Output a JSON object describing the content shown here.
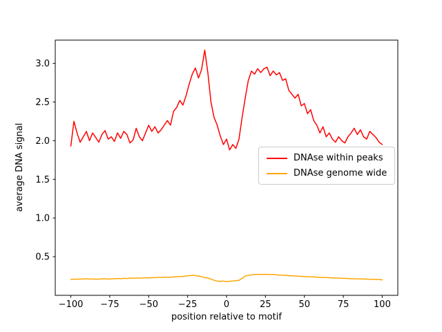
{
  "figure": {
    "background": "#ffffff",
    "spine_color": "#000000",
    "tick_color": "#000000"
  },
  "chart_data": {
    "type": "line",
    "title": "",
    "xlabel": "position relative to motif",
    "ylabel": "average DNA signal",
    "xlim": [
      -110,
      110
    ],
    "ylim": [
      0,
      3.3
    ],
    "xticks": [
      -100,
      -75,
      -50,
      -25,
      0,
      25,
      50,
      75,
      100
    ],
    "yticks": [
      0.5,
      1.0,
      1.5,
      2.0,
      2.5,
      3.0
    ],
    "grid": false,
    "legend_position": "center-right",
    "x": [
      -100,
      -98,
      -96,
      -94,
      -92,
      -90,
      -88,
      -86,
      -84,
      -82,
      -80,
      -78,
      -76,
      -74,
      -72,
      -70,
      -68,
      -66,
      -64,
      -62,
      -60,
      -58,
      -56,
      -54,
      -52,
      -50,
      -48,
      -46,
      -44,
      -42,
      -40,
      -38,
      -36,
      -34,
      -32,
      -30,
      -28,
      -26,
      -24,
      -22,
      -20,
      -18,
      -16,
      -14,
      -12,
      -10,
      -8,
      -6,
      -4,
      -2,
      0,
      2,
      4,
      6,
      8,
      10,
      12,
      14,
      16,
      18,
      20,
      22,
      24,
      26,
      28,
      30,
      32,
      34,
      36,
      38,
      40,
      42,
      44,
      46,
      48,
      50,
      52,
      54,
      56,
      58,
      60,
      62,
      64,
      66,
      68,
      70,
      72,
      74,
      76,
      78,
      80,
      82,
      84,
      86,
      88,
      90,
      92,
      94,
      96,
      98,
      100
    ],
    "series": [
      {
        "name": "DNAse within peaks",
        "color": "#ff0000",
        "values": [
          1.93,
          2.25,
          2.1,
          1.98,
          2.05,
          2.12,
          2.0,
          2.1,
          2.04,
          1.98,
          2.08,
          2.13,
          2.02,
          2.05,
          1.99,
          2.1,
          2.03,
          2.12,
          2.08,
          1.97,
          2.01,
          2.16,
          2.05,
          2.0,
          2.1,
          2.2,
          2.12,
          2.18,
          2.1,
          2.14,
          2.2,
          2.26,
          2.2,
          2.38,
          2.43,
          2.52,
          2.46,
          2.58,
          2.73,
          2.86,
          2.94,
          2.81,
          2.92,
          3.17,
          2.88,
          2.5,
          2.3,
          2.2,
          2.06,
          1.95,
          2.02,
          1.88,
          1.95,
          1.9,
          2.02,
          2.3,
          2.55,
          2.78,
          2.9,
          2.86,
          2.93,
          2.88,
          2.93,
          2.95,
          2.84,
          2.9,
          2.85,
          2.88,
          2.78,
          2.8,
          2.65,
          2.6,
          2.55,
          2.6,
          2.45,
          2.48,
          2.35,
          2.4,
          2.26,
          2.2,
          2.1,
          2.18,
          2.05,
          2.1,
          2.02,
          1.98,
          2.05,
          2.0,
          1.97,
          2.05,
          2.1,
          2.16,
          2.08,
          2.14,
          2.05,
          2.02,
          2.12,
          2.08,
          2.04,
          1.98,
          1.95
        ]
      },
      {
        "name": "DNAse genome wide",
        "color": "#ffa500",
        "values": [
          0.205,
          0.21,
          0.208,
          0.212,
          0.21,
          0.215,
          0.21,
          0.212,
          0.208,
          0.21,
          0.213,
          0.215,
          0.21,
          0.212,
          0.215,
          0.218,
          0.215,
          0.22,
          0.218,
          0.222,
          0.22,
          0.225,
          0.222,
          0.225,
          0.228,
          0.225,
          0.23,
          0.228,
          0.232,
          0.23,
          0.235,
          0.232,
          0.235,
          0.238,
          0.24,
          0.242,
          0.245,
          0.25,
          0.255,
          0.26,
          0.255,
          0.25,
          0.24,
          0.23,
          0.225,
          0.21,
          0.195,
          0.185,
          0.18,
          0.185,
          0.178,
          0.182,
          0.185,
          0.19,
          0.195,
          0.22,
          0.25,
          0.26,
          0.265,
          0.268,
          0.27,
          0.272,
          0.27,
          0.272,
          0.268,
          0.27,
          0.265,
          0.262,
          0.26,
          0.258,
          0.255,
          0.252,
          0.25,
          0.248,
          0.245,
          0.243,
          0.24,
          0.24,
          0.238,
          0.235,
          0.232,
          0.23,
          0.23,
          0.228,
          0.225,
          0.225,
          0.222,
          0.22,
          0.22,
          0.218,
          0.215,
          0.215,
          0.213,
          0.212,
          0.21,
          0.21,
          0.208,
          0.207,
          0.206,
          0.205,
          0.2
        ]
      }
    ]
  }
}
